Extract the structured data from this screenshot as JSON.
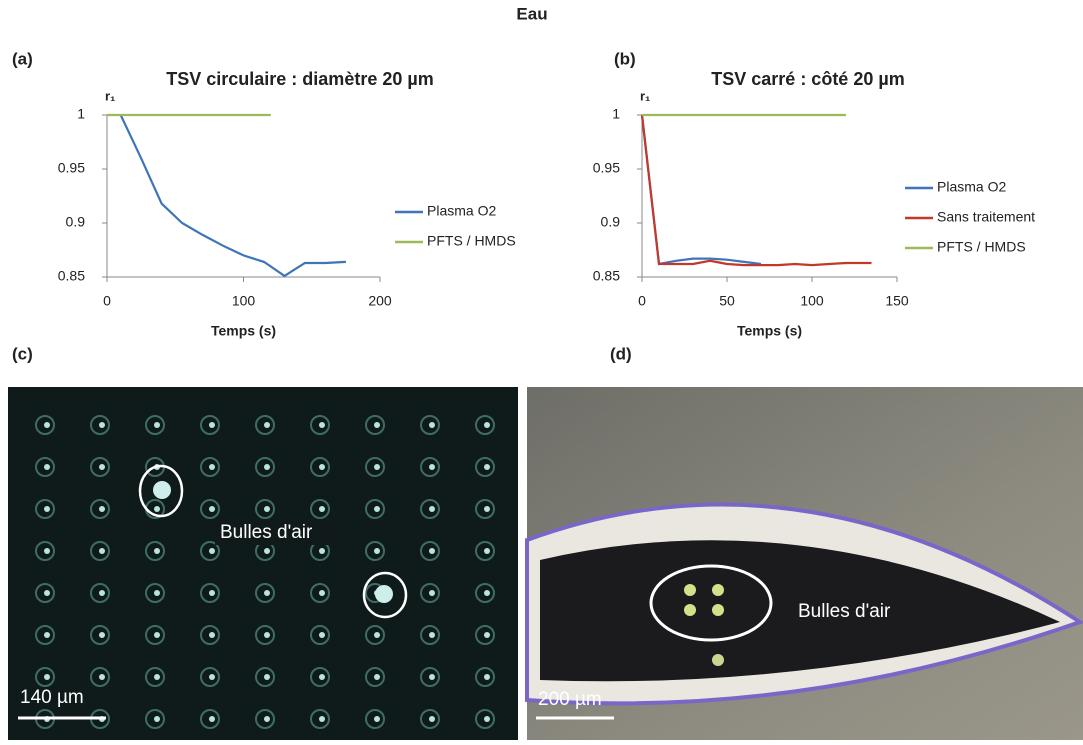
{
  "figure": {
    "title": "Eau",
    "panels": [
      "(a)",
      "(b)",
      "(c)",
      "(d)"
    ]
  },
  "photos": [
    {
      "annotation": "Bulles d'air",
      "scale_bar": "140 µm"
    },
    {
      "annotation": "Bulles d'air",
      "scale_bar": "200 µm"
    }
  ],
  "chart_data": [
    {
      "type": "line",
      "title": "TSV circulaire :  diamètre 20 µm",
      "y_label": "r₁",
      "x_label": "Temps (s)",
      "xlim": [
        0,
        200
      ],
      "xticks": [
        0,
        100,
        200
      ],
      "ylim": [
        0.85,
        1
      ],
      "yticks": [
        0.85,
        0.9,
        0.95,
        1
      ],
      "series": [
        {
          "name": "Plasma O2",
          "color": "#3e74b8",
          "x": [
            10,
            25,
            40,
            55,
            70,
            85,
            100,
            115,
            130,
            145,
            160,
            175
          ],
          "values": [
            1,
            0.96,
            0.918,
            0.9,
            0.889,
            0.879,
            0.87,
            0.864,
            0.851,
            0.863,
            0.863,
            0.864
          ]
        },
        {
          "name": "PFTS / HMDS",
          "color": "#9bbb59",
          "x": [
            0,
            120
          ],
          "values": [
            1,
            1
          ]
        }
      ]
    },
    {
      "type": "line",
      "title": "TSV carré :  côté 20 µm",
      "y_label": "r₁",
      "x_label": "Temps (s)",
      "xlim": [
        0,
        150
      ],
      "xticks": [
        0,
        50,
        100,
        150
      ],
      "ylim": [
        0.85,
        1
      ],
      "yticks": [
        0.85,
        0.9,
        0.95,
        1
      ],
      "series": [
        {
          "name": "Plasma O2",
          "color": "#3e74b8",
          "x": [
            0,
            10,
            20,
            30,
            40,
            50,
            60,
            70
          ],
          "values": [
            1,
            0.862,
            0.865,
            0.867,
            0.867,
            0.866,
            0.864,
            0.862
          ]
        },
        {
          "name": "Sans traitement",
          "color": "#c0392b",
          "x": [
            0,
            10,
            20,
            30,
            40,
            50,
            60,
            70,
            80,
            90,
            100,
            110,
            120,
            135
          ],
          "values": [
            1,
            0.862,
            0.862,
            0.862,
            0.865,
            0.862,
            0.861,
            0.861,
            0.861,
            0.862,
            0.861,
            0.862,
            0.863,
            0.863
          ]
        },
        {
          "name": "PFTS / HMDS",
          "color": "#9bbb59",
          "x": [
            0,
            120
          ],
          "values": [
            1,
            1
          ]
        }
      ]
    }
  ]
}
